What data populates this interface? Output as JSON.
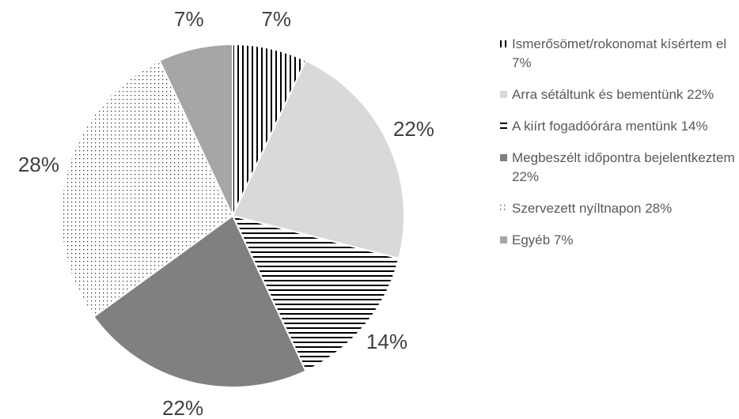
{
  "chart_data": {
    "type": "pie",
    "categories": [
      "Ismerősömet/rokonomat kísértem el 7%",
      "Arra sétáltunk és bementünk 22%",
      "A kiírt fogadóórára mentünk 14%",
      "Megbeszélt időpontra bejelentkeztem 22%",
      "Szervezett nyíltnapon 28%",
      "Egyéb 7%"
    ],
    "values": [
      7,
      22,
      14,
      22,
      28,
      7
    ],
    "value_labels": [
      "7%",
      "22%",
      "14%",
      "22%",
      "28%",
      "7%"
    ],
    "colors": [
      "vstripes",
      "#d9d9d9",
      "hstripes",
      "#808080",
      "dots",
      "#a6a6a6"
    ],
    "legend": "right"
  }
}
